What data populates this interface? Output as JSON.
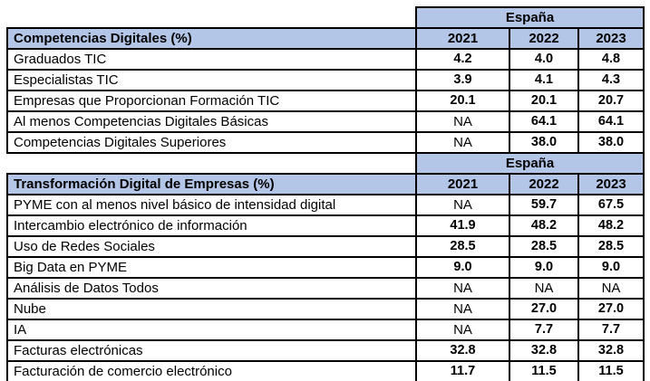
{
  "palette": {
    "header_bg": "#b4c6e7",
    "border": "#000000",
    "value_green": "#548235",
    "value_red": "#cc0022",
    "value_na": "#000000"
  },
  "chart_data": [
    {
      "type": "table",
      "region": "España",
      "title": "Competencias Digitales (%)",
      "columns": [
        "2021",
        "2022",
        "2023"
      ],
      "rows": [
        {
          "label": "Graduados TIC",
          "values": [
            "4.2",
            "4.0",
            "4.8"
          ],
          "value_colors": [
            "green",
            "green",
            "green"
          ]
        },
        {
          "label": "Especialistas TIC",
          "values": [
            "3.9",
            "4.1",
            "4.3"
          ],
          "value_colors": [
            "red",
            "red",
            "red"
          ]
        },
        {
          "label": "Empresas que Proporcionan Formación TIC",
          "values": [
            "20.1",
            "20.1",
            "20.7"
          ],
          "value_colors": [
            "green",
            "green",
            "red"
          ]
        },
        {
          "label": "Al menos Competencias Digitales Básicas",
          "values": [
            "NA",
            "64.1",
            "64.1"
          ],
          "value_colors": [
            "black",
            "green",
            "green"
          ]
        },
        {
          "label": "Competencias Digitales Superiores",
          "values": [
            "NA",
            "38.0",
            "38.0"
          ],
          "value_colors": [
            "black",
            "green",
            "green"
          ]
        }
      ]
    },
    {
      "type": "table",
      "region": "España",
      "title": "Transformación Digital de Empresas (%)",
      "columns": [
        "2021",
        "2022",
        "2023"
      ],
      "rows": [
        {
          "label": "PYME con al menos nivel básico de intensidad digital",
          "values": [
            "NA",
            "59.7",
            "67.5"
          ],
          "value_colors": [
            "black",
            "green",
            "green"
          ]
        },
        {
          "label": "Intercambio electrónico de información",
          "values": [
            "41.9",
            "48.2",
            "48.2"
          ],
          "value_colors": [
            "green",
            "green",
            "green"
          ]
        },
        {
          "label": "Uso de Redes Sociales",
          "values": [
            "28.5",
            "28.5",
            "28.5"
          ],
          "value_colors": [
            "green",
            "green",
            "green"
          ]
        },
        {
          "label": "Big Data en PYME",
          "values": [
            "9.0",
            "9.0",
            "9.0"
          ],
          "value_colors": [
            "red",
            "red",
            "red"
          ]
        },
        {
          "label": "Análisis de Datos Todos",
          "values": [
            "NA",
            "NA",
            "NA"
          ],
          "value_colors": [
            "black",
            "black",
            "black"
          ]
        },
        {
          "label": "Nube",
          "values": [
            "NA",
            "27.0",
            "27.0"
          ],
          "value_colors": [
            "black",
            "red",
            "red"
          ]
        },
        {
          "label": "IA",
          "values": [
            "NA",
            "7.7",
            "7.7"
          ],
          "value_colors": [
            "black",
            "green",
            "green"
          ]
        },
        {
          "label": "Facturas electrónicas",
          "values": [
            "32.8",
            "32.8",
            "32.8"
          ],
          "value_colors": [
            "red",
            "red",
            "red"
          ]
        },
        {
          "label": "Facturación de comercio electrónico",
          "values": [
            "11.7",
            "11.5",
            "11.5"
          ],
          "value_colors": [
            "green",
            "green",
            "green"
          ]
        }
      ]
    }
  ]
}
